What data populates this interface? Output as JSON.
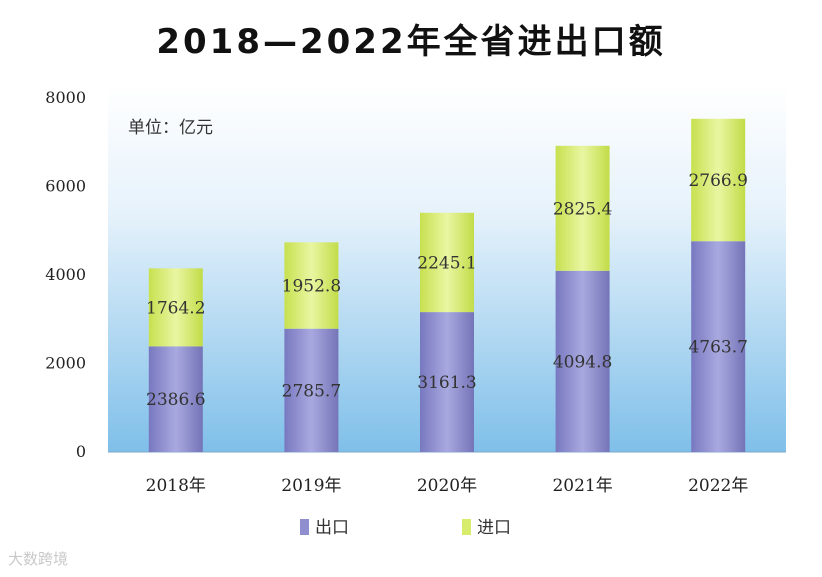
{
  "chart_data": {
    "type": "bar",
    "stacked": true,
    "title": "2018—2022年全省进出口额",
    "unit_label": "单位：亿元",
    "categories": [
      "2018年",
      "2019年",
      "2020年",
      "2021年",
      "2022年"
    ],
    "series": [
      {
        "name": "出口",
        "values": [
          2386.6,
          2785.7,
          3161.3,
          4094.8,
          4763.7
        ],
        "color": "#8f8fcf"
      },
      {
        "name": "进口",
        "values": [
          1764.2,
          1952.8,
          2245.1,
          2825.4,
          2766.9
        ],
        "color": "#d6ec6a"
      }
    ],
    "ylim": [
      0,
      8000
    ],
    "yticks": [
      0,
      2000,
      4000,
      6000,
      8000
    ],
    "grid": false,
    "legend_position": "bottom",
    "background": "light-blue-gradient"
  },
  "watermark": "大数跨境"
}
